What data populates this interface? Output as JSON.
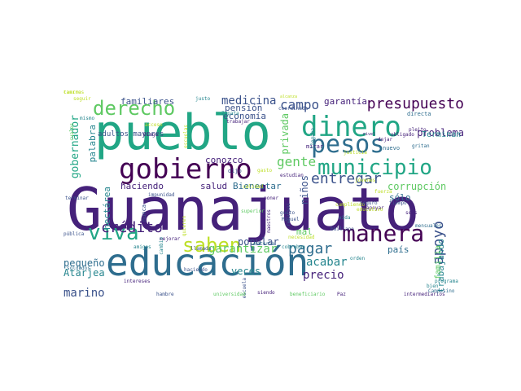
{
  "palette": {
    "c1": "#45217a",
    "c2": "#2e6d8e",
    "c3": "#21a685",
    "c4": "#5ec962",
    "c5": "#bddf26",
    "c6": "#440154",
    "c7": "#3b528b",
    "c8": "#25858e",
    "c9": "#89d548",
    "c10": "#f2e51d"
  },
  "words": [
    {
      "text": "Guanajuato",
      "color": "#45217a"
    },
    {
      "text": "pueblo",
      "color": "#21a685"
    },
    {
      "text": "educación",
      "color": "#2e6d8e"
    },
    {
      "text": "dinero",
      "color": "#21a685"
    },
    {
      "text": "pesos",
      "color": "#2e6d8e"
    },
    {
      "text": "gobierno",
      "color": "#440154"
    },
    {
      "text": "municipio",
      "color": "#21a685"
    },
    {
      "text": "derecho",
      "color": "#5ec962"
    },
    {
      "text": "manera",
      "color": "#440154"
    },
    {
      "text": "viva",
      "color": "#21a685"
    },
    {
      "text": "saben",
      "color": "#bddf26"
    },
    {
      "text": "presupuesto",
      "color": "#440154"
    },
    {
      "text": "entregar",
      "color": "#3b528b"
    },
    {
      "text": "apoyo",
      "color": "#3b528b"
    },
    {
      "text": "pagar",
      "color": "#2e6d8e"
    },
    {
      "text": "crédito",
      "color": "#45217a"
    },
    {
      "text": "campo",
      "color": "#3b528b"
    },
    {
      "text": "gente",
      "color": "#5ec962"
    },
    {
      "text": "medicina",
      "color": "#3b528b"
    },
    {
      "text": "garantizar",
      "color": "#5ec962"
    },
    {
      "text": "acabar",
      "color": "#25858e"
    },
    {
      "text": "popular",
      "color": "#3b528b"
    },
    {
      "text": "precio",
      "color": "#45217a"
    },
    {
      "text": "corrupción",
      "color": "#5ec962"
    },
    {
      "text": "problema",
      "color": "#45217a"
    },
    {
      "text": "marino",
      "color": "#3b528b"
    },
    {
      "text": "Atarjea",
      "color": "#25858e"
    },
    {
      "text": "veces",
      "color": "#25858e"
    },
    {
      "text": "pequeño",
      "color": "#2e6d8e"
    },
    {
      "text": "familiares",
      "color": "#3b528b"
    },
    {
      "text": "economía",
      "color": "#3b528b"
    },
    {
      "text": "pensión",
      "color": "#3b528b"
    },
    {
      "text": "garantía",
      "color": "#45217a"
    },
    {
      "text": "Terminan",
      "color": "#25858e"
    },
    {
      "text": "conozco",
      "color": "#45217a"
    },
    {
      "text": "haciendo",
      "color": "#45217a"
    },
    {
      "text": "salud",
      "color": "#45217a"
    },
    {
      "text": "Bienestar",
      "color": "#2e6d8e"
    },
    {
      "text": "niños",
      "color": "#3b528b"
    },
    {
      "text": "sólo",
      "color": "#2e6d8e"
    },
    {
      "text": "país",
      "color": "#2e6d8e"
    },
    {
      "text": "gobernador",
      "color": "#21a685"
    },
    {
      "text": "palabra",
      "color": "#25858e"
    },
    {
      "text": "hectárea",
      "color": "#25858e"
    },
    {
      "text": "trabajando",
      "color": "#25858e"
    },
    {
      "text": "familia",
      "color": "#5ec962"
    },
    {
      "text": "privada",
      "color": "#5ec962"
    },
    {
      "text": "mal",
      "color": "#5ec962"
    },
    {
      "text": "adultos mayores",
      "color": "#3b528b"
    },
    {
      "text": "mirar",
      "color": "#45217a"
    },
    {
      "text": "seguir",
      "color": "#bddf26"
    },
    {
      "text": "cuales",
      "color": "#5ec962"
    },
    {
      "text": "justo",
      "color": "#25858e"
    },
    {
      "text": "dijo",
      "color": "#3b528b"
    },
    {
      "text": "Diego",
      "color": "#45217a"
    },
    {
      "text": "nuevo",
      "color": "#2e6d8e"
    },
    {
      "text": "pleito",
      "color": "#45217a"
    },
    {
      "text": "directa",
      "color": "#2e6d8e"
    },
    {
      "text": "coordinada",
      "color": "#3b528b"
    },
    {
      "text": "alcanza",
      "color": "#bddf26"
    },
    {
      "text": "Zapata",
      "color": "#25858e"
    },
    {
      "text": "trabajar",
      "color": "#45217a"
    },
    {
      "text": "llegaba",
      "color": "#25858e"
    },
    {
      "text": "nivel",
      "color": "#45217a"
    },
    {
      "text": "obligado",
      "color": "#45217a"
    },
    {
      "text": "dejar",
      "color": "#45217a"
    },
    {
      "text": "gritan",
      "color": "#2e6d8e"
    },
    {
      "text": "estudian",
      "color": "#45217a"
    },
    {
      "text": "cumpliendo",
      "color": "#bddf26"
    },
    {
      "text": "Seguro",
      "color": "#3b528b"
    },
    {
      "text": "apoyar",
      "color": "#45217a"
    },
    {
      "text": "tiempo",
      "color": "#3b528b"
    },
    {
      "text": "seis",
      "color": "#45217a"
    },
    {
      "text": "mensuales",
      "color": "#2e6d8e"
    },
    {
      "text": "terminar",
      "color": "#3b528b"
    },
    {
      "text": "impunidad",
      "color": "#3b528b"
    },
    {
      "text": "nunca",
      "color": "#3b528b"
    },
    {
      "text": "poner",
      "color": "#45217a"
    },
    {
      "text": "recursos",
      "color": "#3b528b"
    },
    {
      "text": "gusto",
      "color": "#3b528b"
    },
    {
      "text": "Miguel",
      "color": "#3b528b"
    },
    {
      "text": "vida",
      "color": "#25858e"
    },
    {
      "text": "Emiliano",
      "color": "#3b528b"
    },
    {
      "text": "pública",
      "color": "#3b528b"
    },
    {
      "text": "amigos",
      "color": "#25858e"
    },
    {
      "text": "mejorar",
      "color": "#45217a"
    },
    {
      "text": "quieren",
      "color": "#bddf26"
    },
    {
      "text": "superior",
      "color": "#5ec962"
    },
    {
      "text": "materia",
      "color": "#2e6d8e"
    },
    {
      "text": "cobraban",
      "color": "#25858e"
    },
    {
      "text": "orden",
      "color": "#25858e"
    },
    {
      "text": "soldados",
      "color": "#2e6d8e"
    },
    {
      "text": "llamada",
      "color": "#3b528b"
    },
    {
      "text": "haciendo",
      "color": "#3b528b"
    },
    {
      "text": "escuela",
      "color": "#3b528b"
    },
    {
      "text": "intereses",
      "color": "#45217a"
    },
    {
      "text": "hambre",
      "color": "#3b528b"
    },
    {
      "text": "universidad",
      "color": "#5ec962"
    },
    {
      "text": "siendo",
      "color": "#45217a"
    },
    {
      "text": "beneficiario",
      "color": "#5ec962"
    },
    {
      "text": "Paz",
      "color": "#45217a"
    },
    {
      "text": "intermediarios",
      "color": "#45217a"
    },
    {
      "text": "bien",
      "color": "#25858e"
    },
    {
      "text": "Campesino",
      "color": "#2e6d8e"
    },
    {
      "text": "programa",
      "color": "#25858e"
    },
    {
      "text": "mismo",
      "color": "#25858e"
    },
    {
      "text": "acceso",
      "color": "#bddf26"
    },
    {
      "text": "maestros",
      "color": "#45217a"
    },
    {
      "text": "cambio",
      "color": "#25858e"
    },
    {
      "text": "jóvenes",
      "color": "#bddf26"
    },
    {
      "text": "necesidad",
      "color": "#bddf26"
    },
    {
      "text": "educativo",
      "color": "#bddf26"
    },
    {
      "text": "gasto",
      "color": "#bddf26"
    },
    {
      "text": "calidad",
      "color": "#bddf26"
    },
    {
      "text": "fuerza",
      "color": "#bddf26"
    },
    {
      "text": "escuelas",
      "color": "#bddf26"
    },
    {
      "text": "justicia",
      "color": "#bddf26"
    },
    {
      "text": "tierra",
      "color": "#bddf26"
    },
    {
      "text": "caminos",
      "color": "#bddf26"
    }
  ]
}
